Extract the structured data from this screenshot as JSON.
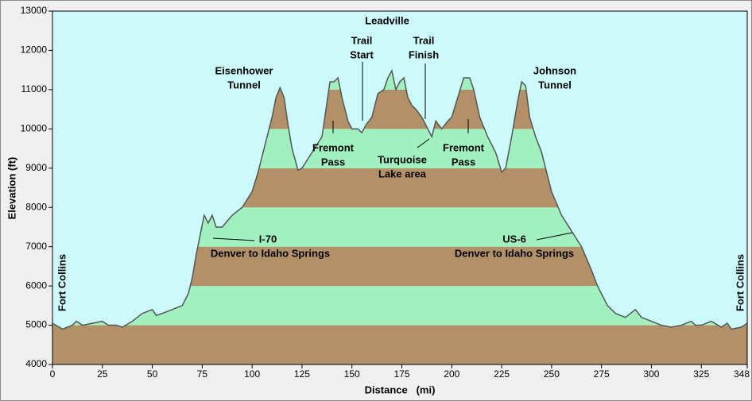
{
  "chart_data": {
    "type": "area",
    "xlabel": "Distance   (mi)",
    "ylabel": "Elevation (ft)",
    "xlim": [
      0,
      348
    ],
    "ylim": [
      4000,
      13000
    ],
    "xticks": [
      0,
      25,
      50,
      75,
      100,
      125,
      150,
      175,
      200,
      225,
      250,
      275,
      300,
      325,
      348
    ],
    "yticks": [
      4000,
      5000,
      6000,
      7000,
      8000,
      9000,
      10000,
      11000,
      12000,
      13000
    ],
    "background": "#ccfafa",
    "band_colors": [
      "#b39168",
      "#a0f0c0"
    ],
    "line_color": "#555555",
    "x": [
      0,
      5,
      10,
      12,
      15,
      20,
      25,
      28,
      32,
      35,
      40,
      45,
      50,
      52,
      55,
      60,
      65,
      68,
      70,
      72,
      74,
      76,
      78,
      80,
      82,
      85,
      90,
      95,
      100,
      103,
      106,
      108,
      110,
      112,
      114,
      116,
      118,
      120,
      123,
      125,
      130,
      135,
      137,
      139,
      141,
      143,
      145,
      148,
      150,
      153,
      155,
      157,
      160,
      163,
      166,
      168,
      170,
      172,
      174,
      176,
      178,
      180,
      182,
      185,
      188,
      190,
      192,
      195,
      198,
      200,
      203,
      206,
      209,
      211,
      214,
      218,
      222,
      225,
      227,
      230,
      233,
      235,
      237,
      239,
      242,
      245,
      248,
      250,
      255,
      260,
      265,
      270,
      273,
      275,
      278,
      282,
      287,
      292,
      295,
      300,
      305,
      310,
      315,
      320,
      322,
      325,
      330,
      335,
      338,
      340,
      345,
      348
    ],
    "values": [
      5050,
      4900,
      5000,
      5100,
      5000,
      5050,
      5100,
      5000,
      5000,
      4950,
      5100,
      5300,
      5400,
      5250,
      5300,
      5400,
      5500,
      5800,
      6200,
      6800,
      7300,
      7800,
      7600,
      7800,
      7500,
      7500,
      7800,
      8000,
      8400,
      8900,
      9500,
      9900,
      10300,
      10800,
      11050,
      10800,
      10100,
      9500,
      8950,
      9000,
      9400,
      9800,
      10500,
      11200,
      11200,
      11300,
      10800,
      10200,
      10000,
      10000,
      9900,
      10100,
      10300,
      10900,
      11000,
      11300,
      11480,
      11000,
      11200,
      11300,
      10800,
      10600,
      10500,
      10300,
      10000,
      9800,
      10200,
      10000,
      10200,
      10300,
      10800,
      11300,
      11300,
      11000,
      10300,
      9800,
      9400,
      8900,
      9000,
      9800,
      10700,
      11200,
      11100,
      10300,
      9800,
      9400,
      8800,
      8400,
      7800,
      7400,
      7000,
      6400,
      6000,
      5800,
      5500,
      5300,
      5200,
      5400,
      5200,
      5100,
      5000,
      4950,
      5000,
      5100,
      5000,
      5000,
      5100,
      4950,
      5050,
      4900,
      4950,
      5050
    ],
    "annotations": [
      [
        "Leadville"
      ],
      [
        "Trail",
        "Start"
      ],
      [
        "Trail",
        "Finish"
      ],
      [
        "Eisenhower",
        "Tunnel"
      ],
      [
        "Johnson",
        "Tunnel"
      ],
      [
        "Fremont",
        "Pass"
      ],
      [
        "Turquoise",
        "Lake area"
      ],
      [
        "Fremont",
        "Pass"
      ],
      [
        "I-70",
        "Denver to Idaho Springs"
      ],
      [
        "US-6",
        "Denver to Idaho Springs"
      ],
      [
        "Fort Collins"
      ],
      [
        "Fort Collins"
      ]
    ]
  }
}
